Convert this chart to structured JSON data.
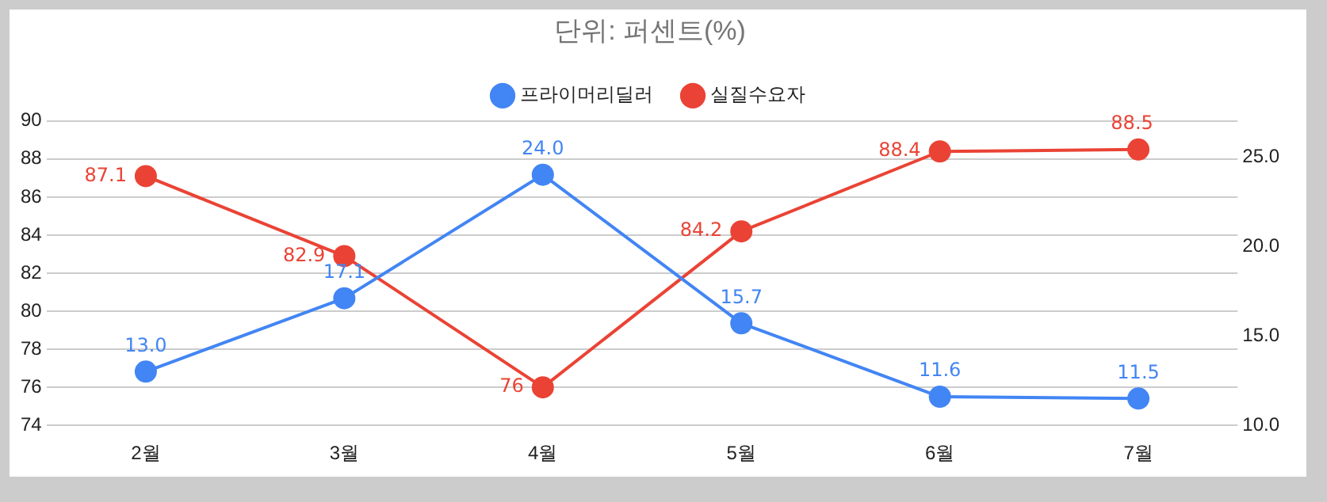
{
  "chart_data": {
    "type": "line",
    "title": "단위: 퍼센트(%)",
    "categories": [
      "2월",
      "3월",
      "4월",
      "5월",
      "6월",
      "7월"
    ],
    "series": [
      {
        "name": "프라이머리딜러",
        "color": "#4285f4",
        "axis": "y2",
        "values": [
          13.0,
          17.1,
          24.0,
          15.7,
          11.6,
          11.5
        ],
        "value_labels": [
          "13.0",
          "17.1",
          "24.0",
          "15.7",
          "11.6",
          "11.5"
        ]
      },
      {
        "name": "실질수요자",
        "color": "#ea4335",
        "values": [
          87.1,
          82.9,
          76,
          84.2,
          88.4,
          88.5
        ],
        "value_labels": [
          "87.1",
          "82.9",
          "76",
          "84.2",
          "88.4",
          "88.5"
        ]
      }
    ],
    "ylim": [
      74,
      90
    ],
    "yticks": [
      74,
      76,
      78,
      80,
      82,
      84,
      86,
      88,
      90
    ],
    "y2lim": [
      10,
      27
    ],
    "y2ticks": [
      {
        "value": 10,
        "label": "10.0"
      },
      {
        "value": 15,
        "label": "15.0"
      },
      {
        "value": 20,
        "label": "20.0"
      },
      {
        "value": 25,
        "label": "25.0"
      }
    ],
    "grid": "y",
    "legend": "top",
    "marker": "circle",
    "line_style": "solid"
  }
}
